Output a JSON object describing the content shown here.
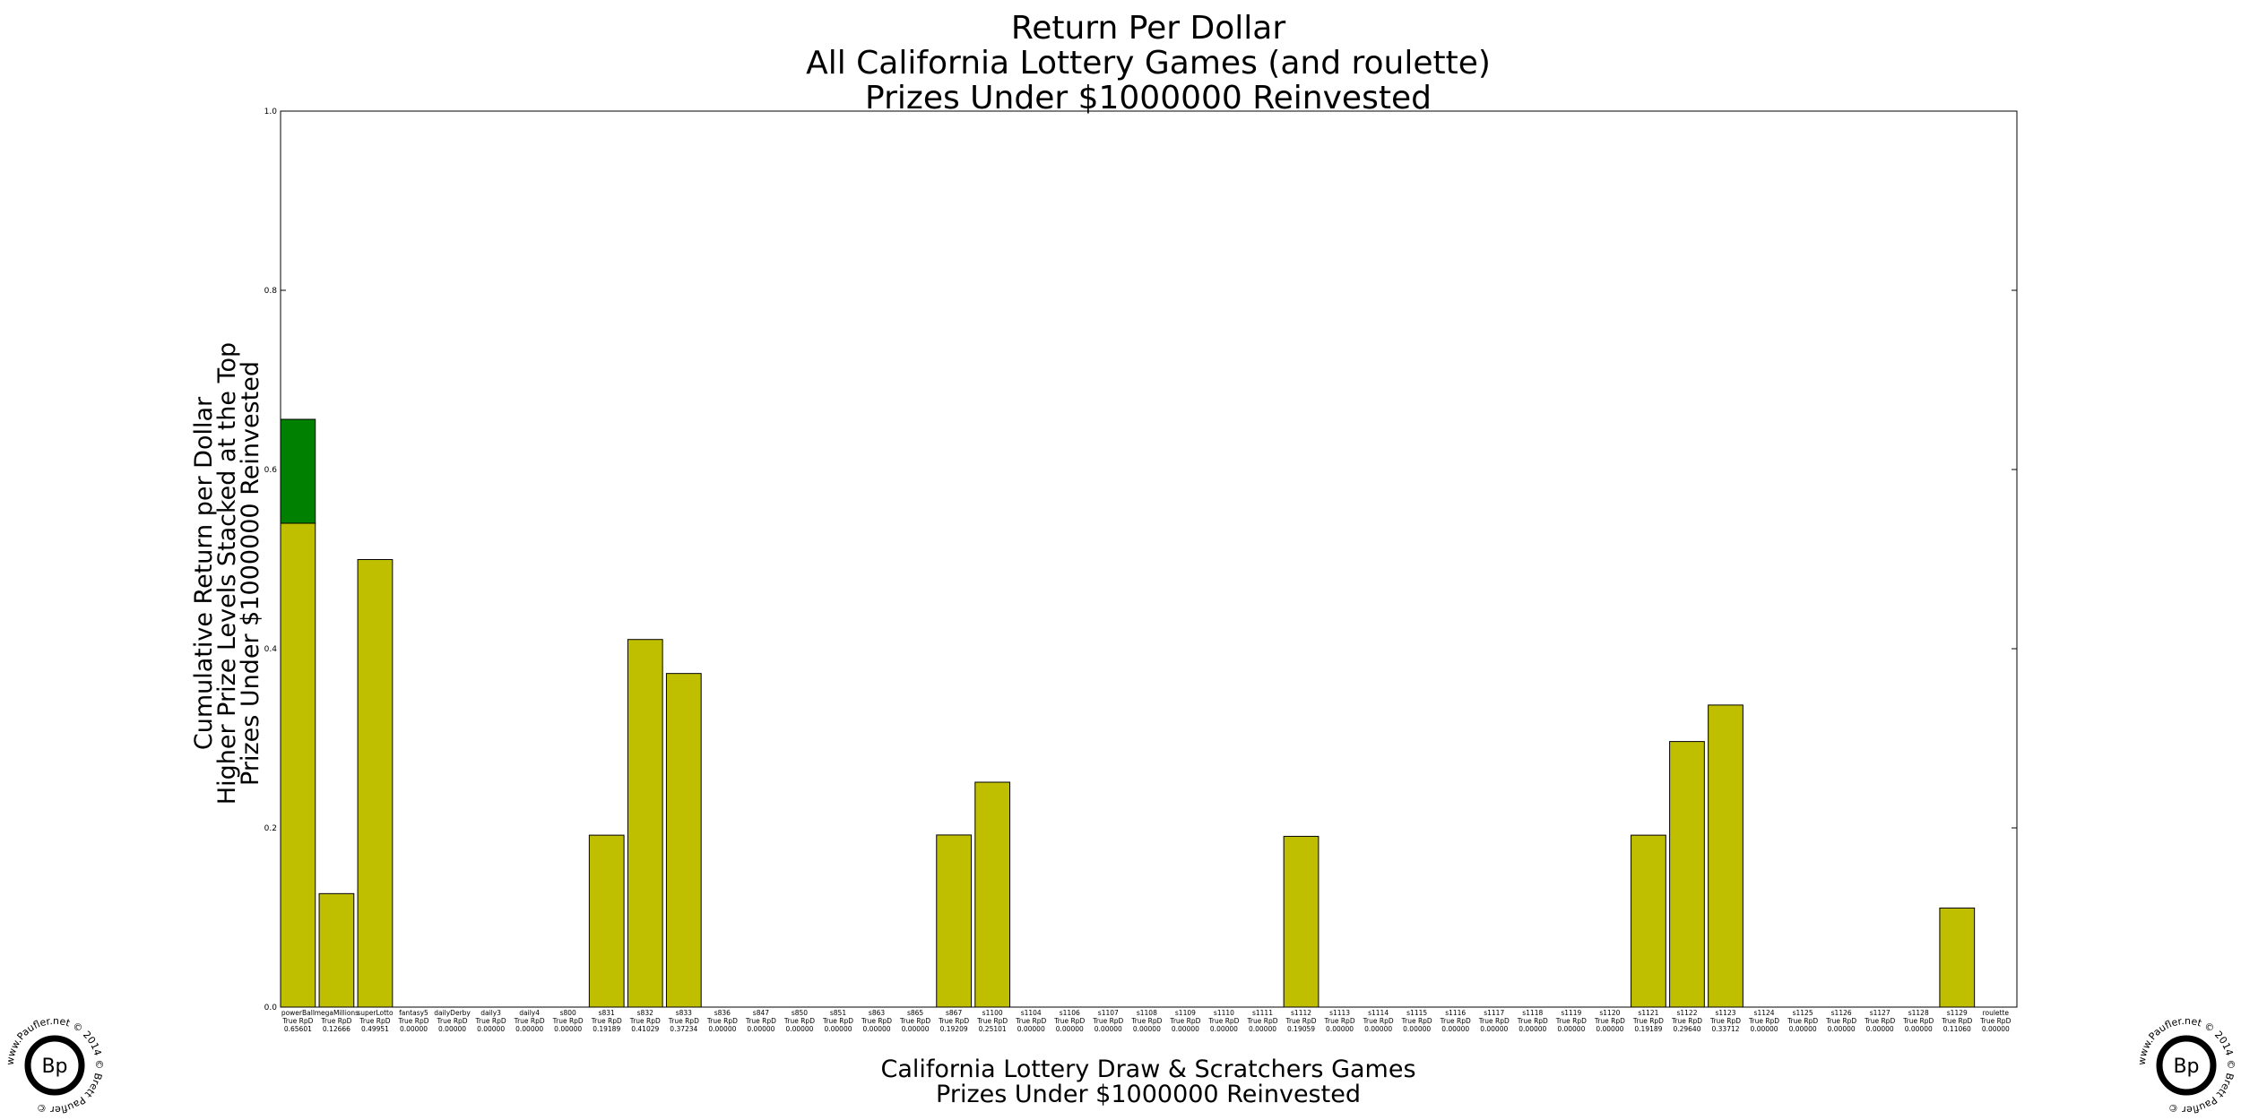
{
  "chart_data": {
    "type": "bar",
    "title": [
      "Return Per Dollar",
      "All California Lottery Games (and roulette)",
      "Prizes Under $1000000 Reinvested"
    ],
    "xlabel": [
      "California Lottery Draw & Scratchers Games",
      "Prizes Under $1000000 Reinvested"
    ],
    "ylabel": [
      "Cumulative Return per Dollar",
      "Higher Prize Levels Stacked at the Top",
      "Prizes Under $1000000 Reinvested"
    ],
    "ylim": [
      0,
      1.0
    ],
    "yticks": [
      "0.0",
      "0.2",
      "0.4",
      "0.6",
      "0.8",
      "1.0"
    ],
    "rpd_label": "True RpD",
    "categories": [
      "powerBall",
      "megaMillions",
      "superLotto",
      "fantasy5",
      "dailyDerby",
      "daily3",
      "daily4",
      "s800",
      "s831",
      "s832",
      "s833",
      "s836",
      "s847",
      "s850",
      "s851",
      "s863",
      "s865",
      "s867",
      "s1100",
      "s1104",
      "s1106",
      "s1107",
      "s1108",
      "s1109",
      "s1110",
      "s1111",
      "s1112",
      "s1113",
      "s1114",
      "s1115",
      "s1116",
      "s1117",
      "s1118",
      "s1119",
      "s1120",
      "s1121",
      "s1122",
      "s1123",
      "s1124",
      "s1125",
      "s1126",
      "s1127",
      "s1128",
      "s1129",
      "roulette"
    ],
    "rpd_values": [
      "0.65601",
      "0.12666",
      "0.49951",
      "0.00000",
      "0.00000",
      "0.00000",
      "0.00000",
      "0.00000",
      "0.19189",
      "0.41029",
      "0.37234",
      "0.00000",
      "0.00000",
      "0.00000",
      "0.00000",
      "0.00000",
      "0.00000",
      "0.19209",
      "0.25101",
      "0.00000",
      "0.00000",
      "0.00000",
      "0.00000",
      "0.00000",
      "0.00000",
      "0.00000",
      "0.19059",
      "0.00000",
      "0.00000",
      "0.00000",
      "0.00000",
      "0.00000",
      "0.00000",
      "0.00000",
      "0.00000",
      "0.19189",
      "0.29640",
      "0.33712",
      "0.00000",
      "0.00000",
      "0.00000",
      "0.00000",
      "0.00000",
      "0.11060",
      "0.00000"
    ],
    "series": [
      {
        "values": [
          0.54,
          0.12666,
          0.49951,
          0,
          0,
          0,
          0,
          0,
          0.19189,
          0.41029,
          0.37234,
          0,
          0,
          0,
          0,
          0,
          0,
          0.19209,
          0.25101,
          0,
          0,
          0,
          0,
          0,
          0,
          0,
          0.19059,
          0,
          0,
          0,
          0,
          0,
          0,
          0,
          0,
          0.19189,
          0.2964,
          0.33712,
          0,
          0,
          0,
          0,
          0,
          0.1106,
          0
        ],
        "color": "#bfbf00"
      },
      {
        "values": [
          0.11601,
          0,
          0,
          0,
          0,
          0,
          0,
          0,
          0,
          0,
          0,
          0,
          0,
          0,
          0,
          0,
          0,
          0,
          0,
          0,
          0,
          0,
          0,
          0,
          0,
          0,
          0,
          0,
          0,
          0,
          0,
          0,
          0,
          0,
          0,
          0,
          0,
          0,
          0,
          0,
          0,
          0,
          0,
          0,
          0
        ],
        "color": "#008000"
      }
    ],
    "grid": false
  },
  "logo": {
    "initials": "Bp",
    "ring_text": "www.Paufler.net © 2014 © Brett Paufler © "
  }
}
